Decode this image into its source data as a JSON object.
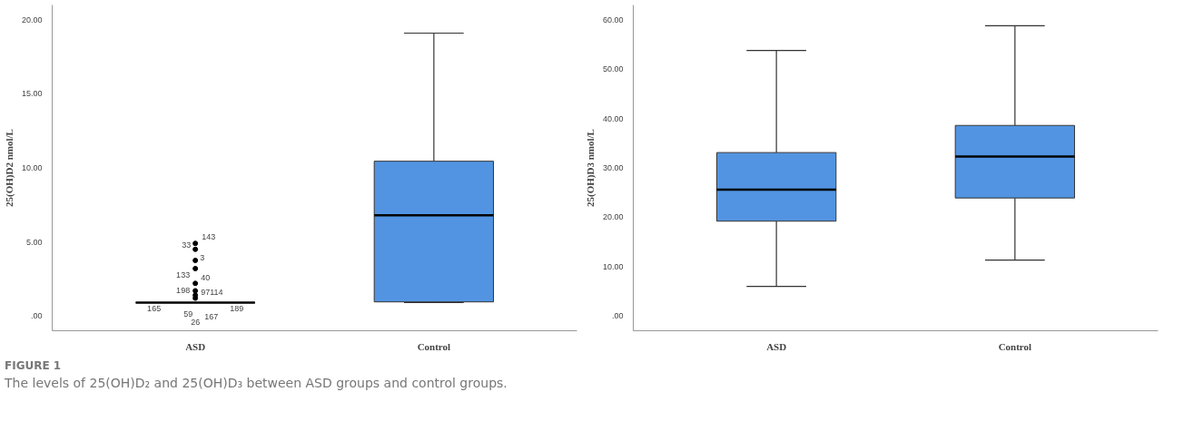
{
  "chart_data": [
    {
      "type": "box",
      "ylabel": "25(OH)D2 nmol/L",
      "categories": [
        "ASD",
        "Control"
      ],
      "color": "#5294e2",
      "boxes": [
        {
          "low": 0.9,
          "q1": 0.9,
          "median": 0.9,
          "q3": 0.9,
          "high": 0.9,
          "outliers": [
            4.9,
            4.5,
            3.75,
            3.2,
            2.2,
            1.7,
            1.4,
            1.2
          ]
        },
        {
          "low": 0.9,
          "q1": 0.95,
          "median": 6.8,
          "q3": 10.45,
          "high": 19.1
        }
      ],
      "ylim": [
        -1.0,
        21.0
      ],
      "yticks": [
        {
          "value": 0,
          "label": ".00"
        },
        {
          "value": 5,
          "label": "5.00"
        },
        {
          "value": 10,
          "label": "10.00"
        },
        {
          "value": 15,
          "label": "15.00"
        },
        {
          "value": 20,
          "label": "20.00"
        }
      ],
      "grid": false,
      "annotations": [
        "143",
        "33",
        "3",
        "133",
        "40",
        "198",
        "97114",
        "165",
        "189",
        "59",
        "167",
        "26",
        "FIGURE 1",
        "The levels of 25(OH)D₂ and 25(OH)D₃ between ASD groups and control groups."
      ]
    },
    {
      "type": "box",
      "ylabel": "25(OH)D3 nmol/L",
      "categories": [
        "ASD",
        "Control"
      ],
      "color": "#5294e2",
      "boxes": [
        {
          "low": 6.0,
          "q1": 19.2,
          "median": 25.6,
          "q3": 33.1,
          "high": 53.8
        },
        {
          "low": 11.3,
          "q1": 23.9,
          "median": 32.3,
          "q3": 38.6,
          "high": 58.8
        }
      ],
      "ylim": [
        -3.0,
        63.0
      ],
      "yticks": [
        {
          "value": 0,
          "label": ".00"
        },
        {
          "value": 10,
          "label": "10.00"
        },
        {
          "value": 20,
          "label": "20.00"
        },
        {
          "value": 30,
          "label": "30.00"
        },
        {
          "value": 40,
          "label": "40.00"
        },
        {
          "value": 50,
          "label": "50.00"
        },
        {
          "value": 60,
          "label": "60.00"
        }
      ],
      "grid": false
    }
  ]
}
